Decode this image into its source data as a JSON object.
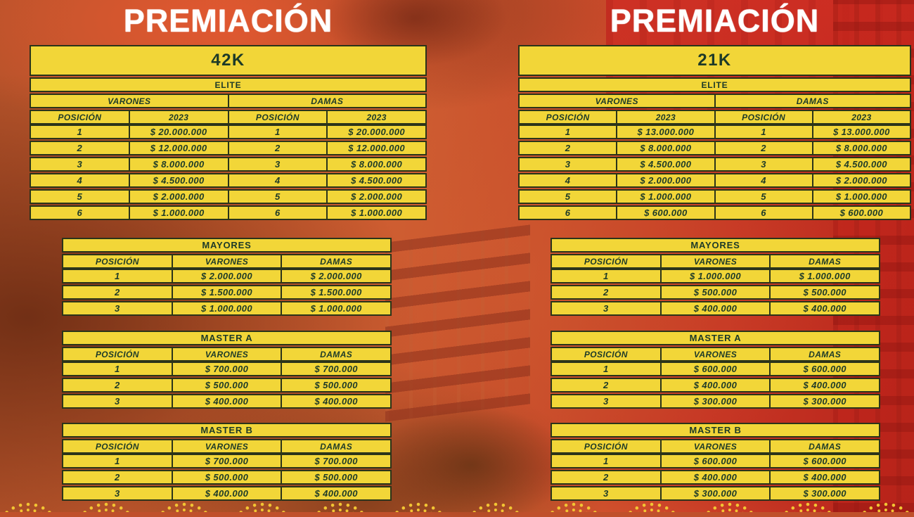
{
  "poster": {
    "left": {
      "title": "PREMIACIÓN",
      "distance": "42K",
      "elite": {
        "label": "ELITE",
        "gender_headers": [
          "VARONES",
          "DAMAS"
        ],
        "col_headers": [
          "POSICIÓN",
          "2023",
          "POSICIÓN",
          "2023"
        ],
        "rows": [
          [
            "1",
            "$ 20.000.000",
            "1",
            "$ 20.000.000"
          ],
          [
            "2",
            "$ 12.000.000",
            "2",
            "$ 12.000.000"
          ],
          [
            "3",
            "$ 8.000.000",
            "3",
            "$ 8.000.000"
          ],
          [
            "4",
            "$ 4.500.000",
            "4",
            "$ 4.500.000"
          ],
          [
            "5",
            "$ 2.000.000",
            "5",
            "$ 2.000.000"
          ],
          [
            "6",
            "$ 1.000.000",
            "6",
            "$ 1.000.000"
          ]
        ]
      },
      "categories": [
        {
          "label": "MAYORES",
          "col_headers": [
            "POSICIÓN",
            "VARONES",
            "DAMAS"
          ],
          "rows": [
            [
              "1",
              "$ 2.000.000",
              "$ 2.000.000"
            ],
            [
              "2",
              "$ 1.500.000",
              "$ 1.500.000"
            ],
            [
              "3",
              "$ 1.000.000",
              "$ 1.000.000"
            ]
          ]
        },
        {
          "label": "MASTER A",
          "col_headers": [
            "POSICIÓN",
            "VARONES",
            "DAMAS"
          ],
          "rows": [
            [
              "1",
              "$ 700.000",
              "$ 700.000"
            ],
            [
              "2",
              "$ 500.000",
              "$ 500.000"
            ],
            [
              "3",
              "$ 400.000",
              "$ 400.000"
            ]
          ]
        },
        {
          "label": "MASTER B",
          "col_headers": [
            "POSICIÓN",
            "VARONES",
            "DAMAS"
          ],
          "rows": [
            [
              "1",
              "$ 700.000",
              "$ 700.000"
            ],
            [
              "2",
              "$ 500.000",
              "$ 500.000"
            ],
            [
              "3",
              "$ 400.000",
              "$ 400.000"
            ]
          ]
        }
      ]
    },
    "right": {
      "title": "PREMIACIÓN",
      "distance": "21K",
      "elite": {
        "label": "ELITE",
        "gender_headers": [
          "VARONES",
          "DAMAS"
        ],
        "col_headers": [
          "POSICIÓN",
          "2023",
          "POSICIÓN",
          "2023"
        ],
        "rows": [
          [
            "1",
            "$ 13.000.000",
            "1",
            "$ 13.000.000"
          ],
          [
            "2",
            "$ 8.000.000",
            "2",
            "$ 8.000.000"
          ],
          [
            "3",
            "$ 4.500.000",
            "3",
            "$ 4.500.000"
          ],
          [
            "4",
            "$ 2.000.000",
            "4",
            "$ 2.000.000"
          ],
          [
            "5",
            "$ 1.000.000",
            "5",
            "$ 1.000.000"
          ],
          [
            "6",
            "$ 600.000",
            "6",
            "$ 600.000"
          ]
        ]
      },
      "categories": [
        {
          "label": "MAYORES",
          "col_headers": [
            "POSICIÓN",
            "VARONES",
            "DAMAS"
          ],
          "rows": [
            [
              "1",
              "$ 1.000.000",
              "$ 1.000.000"
            ],
            [
              "2",
              "$ 500.000",
              "$ 500.000"
            ],
            [
              "3",
              "$ 400.000",
              "$ 400.000"
            ]
          ]
        },
        {
          "label": "MASTER A",
          "col_headers": [
            "POSICIÓN",
            "VARONES",
            "DAMAS"
          ],
          "rows": [
            [
              "1",
              "$ 600.000",
              "$ 600.000"
            ],
            [
              "2",
              "$ 400.000",
              "$ 400.000"
            ],
            [
              "3",
              "$ 300.000",
              "$ 300.000"
            ]
          ]
        },
        {
          "label": "MASTER B",
          "col_headers": [
            "POSICIÓN",
            "VARONES",
            "DAMAS"
          ],
          "rows": [
            [
              "1",
              "$ 600.000",
              "$ 600.000"
            ],
            [
              "2",
              "$ 400.000",
              "$ 400.000"
            ],
            [
              "3",
              "$ 300.000",
              "$ 300.000"
            ]
          ]
        }
      ]
    }
  },
  "colors": {
    "table_yellow": "#F2D638",
    "table_ink": "#1D3A28",
    "table_border": "#2B341A",
    "title_white": "#FFFFFF",
    "dot_yellow": "#F2C533",
    "background_orange": "#C85C2F",
    "background_red": "#BD2A1E"
  }
}
